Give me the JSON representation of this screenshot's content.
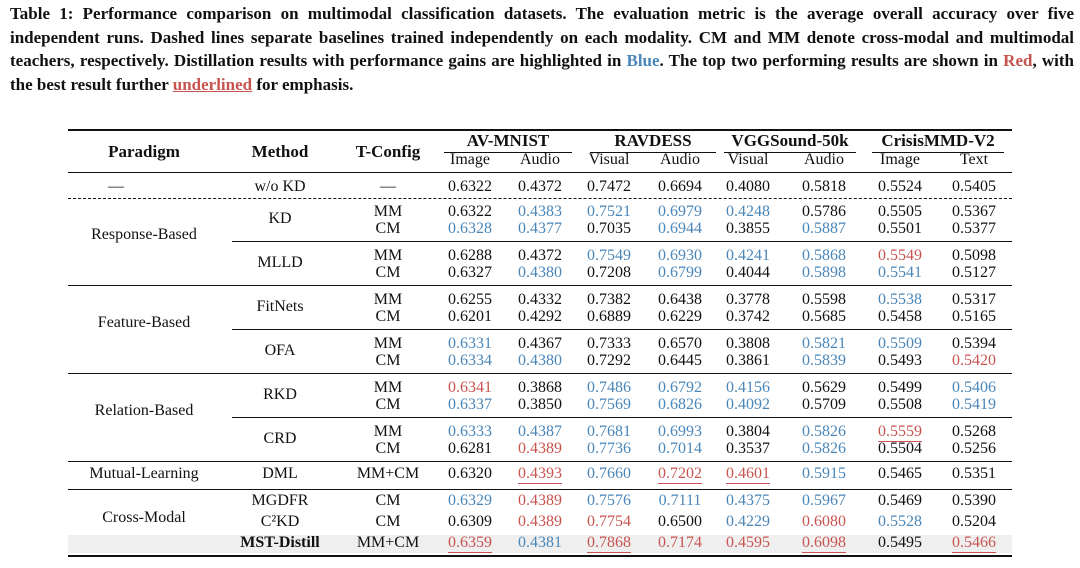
{
  "caption": {
    "label": "Table 1:",
    "text1": " Performance comparison on multimodal classification datasets. The evaluation metric is the average overall accuracy over five independent runs. Dashed lines separate baselines trained independently on each modality. CM and MM denote cross-modal and multimodal teachers, respectively. Distillation results with performance gains are highlighted in ",
    "blue_word": "Blue",
    "text2": ". The top two performing results are shown in ",
    "red_word": "Red",
    "text3": ", with the best result further ",
    "underlined_word": "underlined",
    "text4": " for emphasis."
  },
  "headers": {
    "paradigm": "Paradigm",
    "method": "Method",
    "tconfig": "T-Config",
    "datasets": [
      "AV-MNIST",
      "RAVDESS",
      "VGGSound-50k",
      "CrisisMMD-V2"
    ],
    "modalities": [
      "Image",
      "Audio",
      "Visual",
      "Audio",
      "Visual",
      "Audio",
      "Image",
      "Text"
    ]
  },
  "paradigms": [
    "—",
    "Response-Based",
    "Feature-Based",
    "Relation-Based",
    "Mutual-Learning",
    "Cross-Modal"
  ],
  "methods": [
    "w/o KD",
    "KD",
    "MLLD",
    "FitNets",
    "OFA",
    "RKD",
    "CRD",
    "DML",
    "MGDFR",
    "C²KD",
    "MST-Distill"
  ],
  "rows": [
    {
      "cfg": "—",
      "vals": [
        "0.6322",
        "0.4372",
        "0.7472",
        "0.6694",
        "0.4080",
        "0.5818",
        "0.5524",
        "0.5405"
      ],
      "st": "........"
    },
    {
      "cfg": "MM",
      "vals": [
        "0.6322",
        "0.4383",
        "0.7521",
        "0.6979",
        "0.4248",
        "0.5786",
        "0.5505",
        "0.5367"
      ],
      "st": ".bbbb..."
    },
    {
      "cfg": "CM",
      "vals": [
        "0.6328",
        "0.4377",
        "0.7035",
        "0.6944",
        "0.3855",
        "0.5887",
        "0.5501",
        "0.5377"
      ],
      "st": "bb.b.b.."
    },
    {
      "cfg": "MM",
      "vals": [
        "0.6288",
        "0.4372",
        "0.7549",
        "0.6930",
        "0.4241",
        "0.5868",
        "0.5549",
        "0.5098"
      ],
      "st": "..bbbbr."
    },
    {
      "cfg": "CM",
      "vals": [
        "0.6327",
        "0.4380",
        "0.7208",
        "0.6799",
        "0.4044",
        "0.5898",
        "0.5541",
        "0.5127"
      ],
      "st": ".b.b.bb."
    },
    {
      "cfg": "MM",
      "vals": [
        "0.6255",
        "0.4332",
        "0.7382",
        "0.6438",
        "0.3778",
        "0.5598",
        "0.5538",
        "0.5317"
      ],
      "st": "......b."
    },
    {
      "cfg": "CM",
      "vals": [
        "0.6201",
        "0.4292",
        "0.6889",
        "0.6229",
        "0.3742",
        "0.5685",
        "0.5458",
        "0.5165"
      ],
      "st": "........"
    },
    {
      "cfg": "MM",
      "vals": [
        "0.6331",
        "0.4367",
        "0.7333",
        "0.6570",
        "0.3808",
        "0.5821",
        "0.5509",
        "0.5394"
      ],
      "st": "b....bb."
    },
    {
      "cfg": "CM",
      "vals": [
        "0.6334",
        "0.4380",
        "0.7292",
        "0.6445",
        "0.3861",
        "0.5839",
        "0.5493",
        "0.5420"
      ],
      "st": "bb...b.r"
    },
    {
      "cfg": "MM",
      "vals": [
        "0.6341",
        "0.3868",
        "0.7486",
        "0.6792",
        "0.4156",
        "0.5629",
        "0.5499",
        "0.5406"
      ],
      "st": "r.bbb..b"
    },
    {
      "cfg": "CM",
      "vals": [
        "0.6337",
        "0.3850",
        "0.7569",
        "0.6826",
        "0.4092",
        "0.5709",
        "0.5508",
        "0.5419"
      ],
      "st": "b.bbb..b"
    },
    {
      "cfg": "MM",
      "vals": [
        "0.6333",
        "0.4387",
        "0.7681",
        "0.6993",
        "0.3804",
        "0.5826",
        "0.5559",
        "0.5268"
      ],
      "st": "bbbb.bR."
    },
    {
      "cfg": "CM",
      "vals": [
        "0.6281",
        "0.4389",
        "0.7736",
        "0.7014",
        "0.3537",
        "0.5826",
        "0.5504",
        "0.5256"
      ],
      "st": ".rbb.b.."
    },
    {
      "cfg": "MM+CM",
      "vals": [
        "0.6320",
        "0.4393",
        "0.7660",
        "0.7202",
        "0.4601",
        "0.5915",
        "0.5465",
        "0.5351"
      ],
      "st": ".RbRRb.."
    },
    {
      "cfg": "CM",
      "vals": [
        "0.6329",
        "0.4389",
        "0.7576",
        "0.7111",
        "0.4375",
        "0.5967",
        "0.5469",
        "0.5390"
      ],
      "st": "brbbbb.."
    },
    {
      "cfg": "CM",
      "vals": [
        "0.6309",
        "0.4389",
        "0.7754",
        "0.6500",
        "0.4229",
        "0.6080",
        "0.5528",
        "0.5204"
      ],
      "st": ".rr.brb."
    },
    {
      "cfg": "MM+CM",
      "vals": [
        "0.6359",
        "0.4381",
        "0.7868",
        "0.7174",
        "0.4595",
        "0.6098",
        "0.5495",
        "0.5466"
      ],
      "st": "RbRrrR.R"
    }
  ]
}
